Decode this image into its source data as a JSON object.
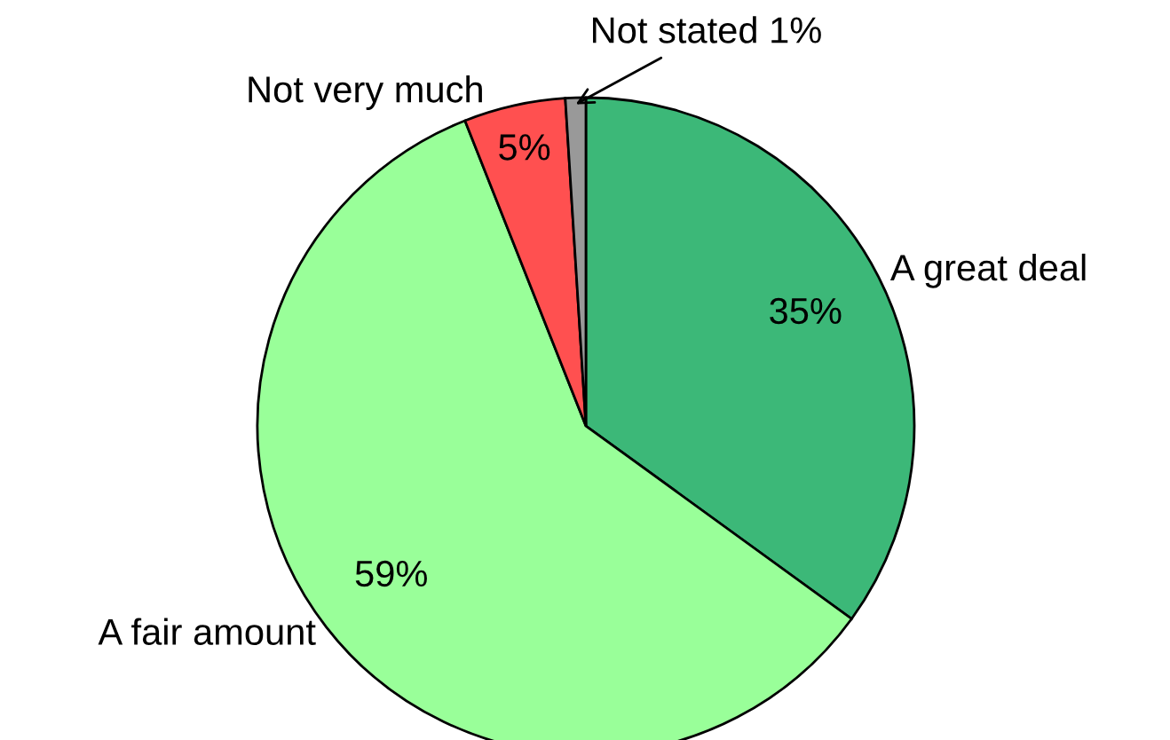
{
  "chart_data": {
    "type": "pie",
    "categories": [
      "A great deal",
      "A fair amount",
      "Not very much",
      "Not stated"
    ],
    "values": [
      35,
      59,
      5,
      1
    ],
    "colors": [
      "#3cb878",
      "#99ff99",
      "#ff5050",
      "#999999"
    ],
    "value_labels": [
      "35%",
      "59%",
      "5%",
      "1%"
    ],
    "legend": false
  }
}
